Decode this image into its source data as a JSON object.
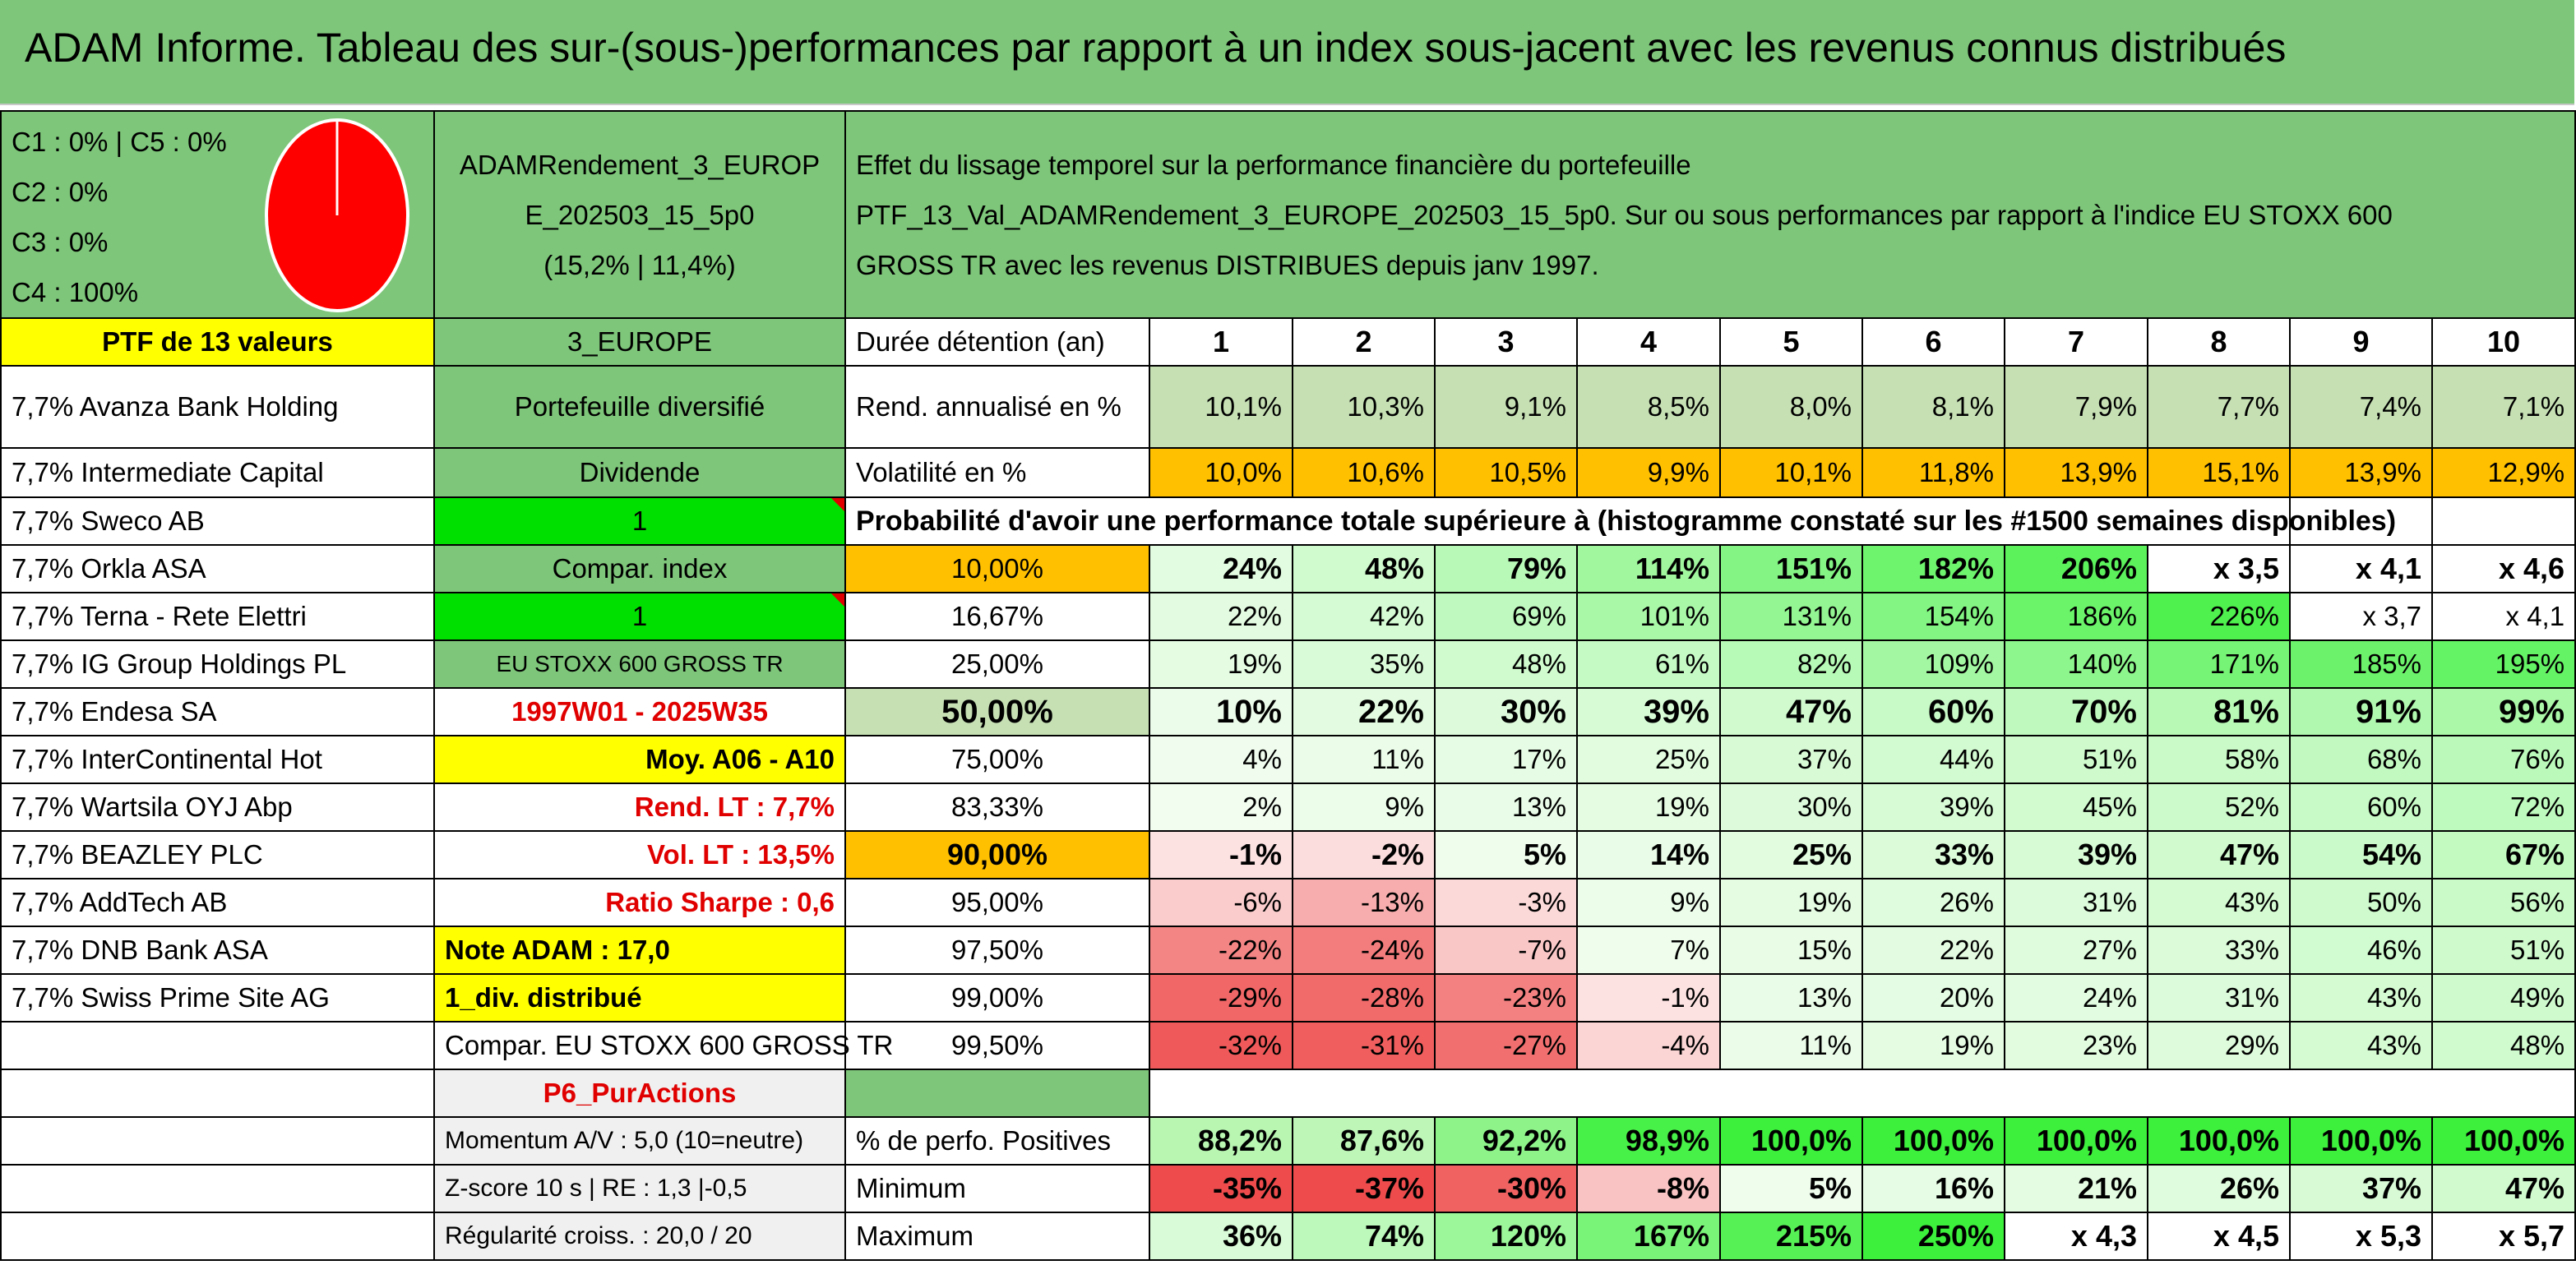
{
  "title": "ADAM Informe. Tableau des sur-(sous-)performances par rapport à un index sous-jacent avec les revenus connus distribués",
  "pie": {
    "lines": [
      "C1 : 0% | C5 : 0%",
      "C2 : 0%",
      "C3 : 0%",
      "C4 : 100%"
    ],
    "slices": [
      {
        "label": "C4",
        "value": 100,
        "color": "#ff0000"
      }
    ]
  },
  "portfolio": {
    "name_line1": "ADAMRendement_3_EUROP",
    "name_line2": "E_202503_15_5p0",
    "name_line3": "(15,2% | 11,4%)",
    "description_line1": "Effet du lissage temporel sur la performance financière du portefeuille",
    "description_line2": "PTF_13_Val_ADAMRendement_3_EUROPE_202503_15_5p0. Sur ou sous performances par rapport à l'indice EU STOXX 600",
    "description_line3": "GROSS TR avec les revenus DISTRIBUES depuis janv 1997."
  },
  "left_col": {
    "header": "PTF de 13 valeurs",
    "holdings": [
      "7,7% Avanza Bank Holding",
      "7,7% Intermediate Capital",
      "7,7% Sweco AB",
      "7,7% Orkla ASA",
      "7,7% Terna - Rete Elettri",
      "7,7% IG Group Holdings PL",
      "7,7% Endesa SA",
      "7,7% InterContinental Hot",
      "7,7% Wartsila OYJ Abp",
      "7,7% BEAZLEY PLC",
      "7,7% AddTech AB",
      "7,7% DNB Bank ASA",
      "7,7% Swiss Prime Site AG"
    ]
  },
  "mid_col": {
    "region": "3_EUROPE",
    "type": "Portefeuille diversifié",
    "dividend_label": "Dividende",
    "dividend_value": "1",
    "compar_label": "Compar. index",
    "compar_value": "1",
    "index_name": "EU STOXX 600 GROSS TR",
    "period": "1997W01 - 2025W35",
    "moy": "Moy. A06 - A10",
    "rend_lt": "Rend. LT : 7,7%",
    "vol_lt": "Vol. LT : 13,5%",
    "sharpe": "Ratio Sharpe : 0,6",
    "note": "Note ADAM : 17,0",
    "div": "1_div. distribué",
    "compar_full": "Compar. EU STOXX 600 GROSS TR",
    "purchase": "P6_PurActions",
    "momentum": "Momentum A/V : 5,0 (10=neutre)",
    "zscore": "Z-score 10 s | RE : 1,3 |-0,5",
    "regularite": "Régularité croiss. : 20,0 / 20"
  },
  "table": {
    "duration_label": "Durée détention (an)",
    "years": [
      "1",
      "2",
      "3",
      "4",
      "5",
      "6",
      "7",
      "8",
      "9",
      "10"
    ],
    "rend_label": "Rend. annualisé en %",
    "rend": [
      "10,1%",
      "10,3%",
      "9,1%",
      "8,5%",
      "8,0%",
      "8,1%",
      "7,9%",
      "7,7%",
      "7,4%",
      "7,1%"
    ],
    "vol_label": "Volatilité en %",
    "vol": [
      "10,0%",
      "10,6%",
      "10,5%",
      "9,9%",
      "10,1%",
      "11,8%",
      "13,9%",
      "15,1%",
      "13,9%",
      "12,9%"
    ],
    "prob_label": "Probabilité d'avoir une performance totale supérieure à (histogramme constaté sur les #1500 semaines disponibles)",
    "quantiles": [
      {
        "q": "10,00%",
        "values": [
          "24%",
          "48%",
          "79%",
          "114%",
          "151%",
          "182%",
          "206%",
          "x 3,5",
          "x 4,1",
          "x 4,6"
        ]
      },
      {
        "q": "16,67%",
        "values": [
          "22%",
          "42%",
          "69%",
          "101%",
          "131%",
          "154%",
          "186%",
          "226%",
          "x 3,7",
          "x 4,1"
        ]
      },
      {
        "q": "25,00%",
        "values": [
          "19%",
          "35%",
          "48%",
          "61%",
          "82%",
          "109%",
          "140%",
          "171%",
          "185%",
          "195%"
        ]
      },
      {
        "q": "50,00%",
        "values": [
          "10%",
          "22%",
          "30%",
          "39%",
          "47%",
          "60%",
          "70%",
          "81%",
          "91%",
          "99%"
        ]
      },
      {
        "q": "75,00%",
        "values": [
          "4%",
          "11%",
          "17%",
          "25%",
          "37%",
          "44%",
          "51%",
          "58%",
          "68%",
          "76%"
        ]
      },
      {
        "q": "83,33%",
        "values": [
          "2%",
          "9%",
          "13%",
          "19%",
          "30%",
          "39%",
          "45%",
          "52%",
          "60%",
          "72%"
        ]
      },
      {
        "q": "90,00%",
        "values": [
          "-1%",
          "-2%",
          "5%",
          "14%",
          "25%",
          "33%",
          "39%",
          "47%",
          "54%",
          "67%"
        ]
      },
      {
        "q": "95,00%",
        "values": [
          "-6%",
          "-13%",
          "-3%",
          "9%",
          "19%",
          "26%",
          "31%",
          "43%",
          "50%",
          "56%"
        ]
      },
      {
        "q": "97,50%",
        "values": [
          "-22%",
          "-24%",
          "-7%",
          "7%",
          "15%",
          "22%",
          "27%",
          "33%",
          "46%",
          "51%"
        ]
      },
      {
        "q": "99,00%",
        "values": [
          "-29%",
          "-28%",
          "-23%",
          "-1%",
          "13%",
          "20%",
          "24%",
          "31%",
          "43%",
          "49%"
        ]
      },
      {
        "q": "99,50%",
        "values": [
          "-32%",
          "-31%",
          "-27%",
          "-4%",
          "11%",
          "19%",
          "23%",
          "29%",
          "43%",
          "48%"
        ]
      }
    ],
    "pos_label": "% de perfo. Positives",
    "pos": [
      "88,2%",
      "87,6%",
      "92,2%",
      "98,9%",
      "100,0%",
      "100,0%",
      "100,0%",
      "100,0%",
      "100,0%",
      "100,0%"
    ],
    "min_label": "Minimum",
    "min": [
      "-35%",
      "-37%",
      "-30%",
      "-8%",
      "5%",
      "16%",
      "21%",
      "26%",
      "37%",
      "47%"
    ],
    "max_label": "Maximum",
    "max": [
      "36%",
      "74%",
      "120%",
      "167%",
      "215%",
      "250%",
      "x 4,3",
      "x 4,5",
      "x 5,3",
      "x 5,7"
    ]
  },
  "colors": {
    "header_green": "#7ec67a",
    "yellow": "#ffff00",
    "orange": "#ffc000",
    "bright_green": "#00e000",
    "negative_red": "#f06060",
    "positive_green": "#50f050"
  }
}
